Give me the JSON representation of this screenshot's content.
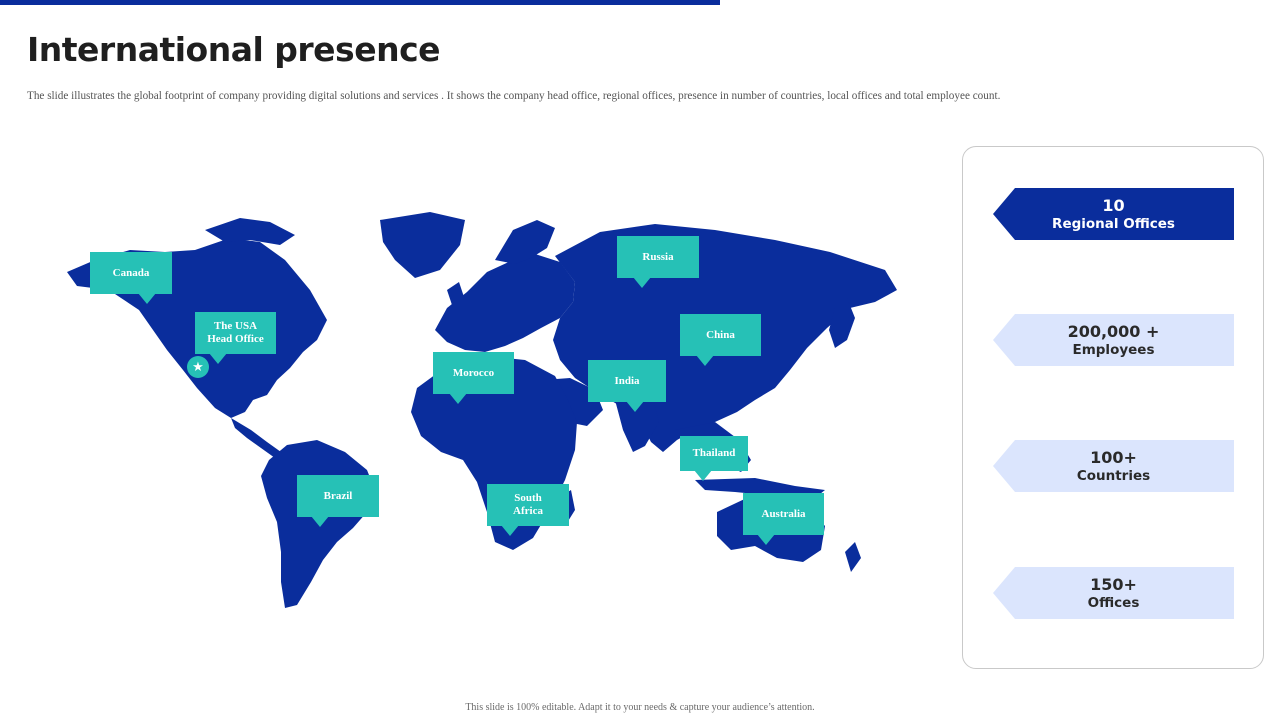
{
  "slide": {
    "title": "International presence",
    "subtitle": "The slide illustrates the global  footprint of company providing digital  solutions and  services . It shows the company head office,  regional  offices,  presence in number  of countries,  local offices and total employee count.",
    "footer": "This slide is 100% editable. Adapt it to your needs & capture your audience’s attention."
  },
  "map": {
    "land_color": "#0a2d9c",
    "callout_color": "#26c1b6",
    "head_office_marker": "star-icon",
    "callouts": [
      {
        "id": "canada",
        "label": "Canada"
      },
      {
        "id": "usa",
        "label": "The USA\nHead Office"
      },
      {
        "id": "russia",
        "label": "Russia"
      },
      {
        "id": "china",
        "label": "China"
      },
      {
        "id": "morocco",
        "label": "Morocco"
      },
      {
        "id": "india",
        "label": "India"
      },
      {
        "id": "thailand",
        "label": "Thailand"
      },
      {
        "id": "brazil",
        "label": "Brazil"
      },
      {
        "id": "south-africa",
        "label": "South\nAfrica"
      },
      {
        "id": "australia",
        "label": "Australia"
      }
    ]
  },
  "stats": [
    {
      "value": "10",
      "label": "Regional Offices",
      "style": "dark"
    },
    {
      "value": "200,000 +",
      "label": "Employees",
      "style": "light"
    },
    {
      "value": "100+",
      "label": "Countries",
      "style": "light"
    },
    {
      "value": "150+",
      "label": "Offices",
      "style": "light"
    }
  ],
  "colors": {
    "accent_dark": "#0a2d9c",
    "accent_light": "#dbe5fd",
    "teal": "#26c1b6"
  }
}
